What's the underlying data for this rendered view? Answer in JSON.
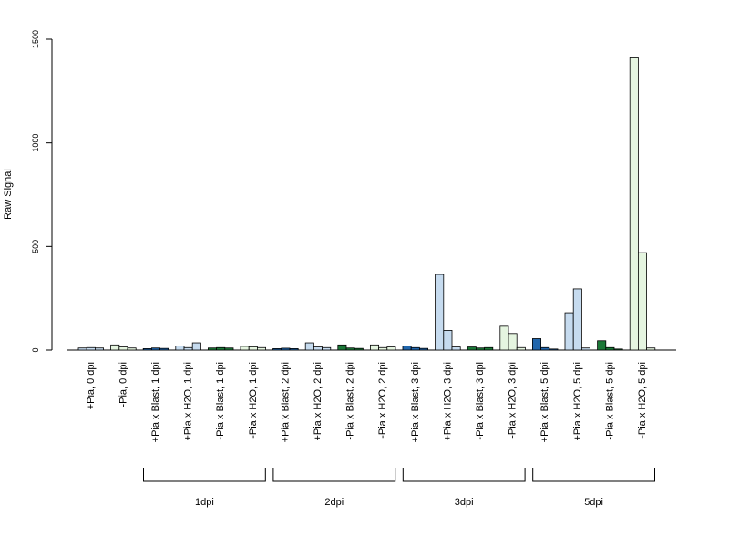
{
  "chart_data": {
    "type": "bar",
    "title": "",
    "xlabel": "",
    "ylabel": "Raw Signal",
    "ylim": [
      0,
      1500
    ],
    "yticks": [
      0,
      500,
      1000,
      1500
    ],
    "grid": false,
    "legend": "none",
    "categories": [
      "+Pia, 0 dpi",
      "-Pia, 0 dpi",
      "+Pia x Blast, 1 dpi",
      "+Pia x H2O, 1 dpi",
      "-Pia x Blast, 1 dpi",
      "-Pia x H2O, 1 dpi",
      "+Pia x Blast, 2 dpi",
      "+Pia x H2O, 2 dpi",
      "-Pia x Blast, 2 dpi",
      "-Pia x H2O, 2 dpi",
      "+Pia x Blast, 3 dpi",
      "+Pia x H2O, 3 dpi",
      "-Pia x Blast, 3 dpi",
      "-Pia x H2O, 3 dpi",
      "+Pia x Blast, 5 dpi",
      "+Pia x H2O, 5 dpi",
      "-Pia x Blast, 5 dpi",
      "-Pia x H2O, 5 dpi"
    ],
    "category_colors": [
      "#c6dbef",
      "#e5f5e0",
      "#2166ac",
      "#c6dbef",
      "#1b7837",
      "#e5f5e0",
      "#2166ac",
      "#c6dbef",
      "#1b7837",
      "#e5f5e0",
      "#2166ac",
      "#c6dbef",
      "#1b7837",
      "#e5f5e0",
      "#2166ac",
      "#c6dbef",
      "#1b7837",
      "#e5f5e0"
    ],
    "values": [
      [
        10,
        12,
        10
      ],
      [
        25,
        15,
        10
      ],
      [
        7,
        10,
        8
      ],
      [
        20,
        12,
        35
      ],
      [
        10,
        12,
        10
      ],
      [
        18,
        16,
        12
      ],
      [
        7,
        9,
        7
      ],
      [
        35,
        15,
        12
      ],
      [
        25,
        10,
        8
      ],
      [
        25,
        12,
        15
      ],
      [
        20,
        12,
        8
      ],
      [
        365,
        95,
        15
      ],
      [
        15,
        10,
        12
      ],
      [
        115,
        80,
        12
      ],
      [
        55,
        12,
        5
      ],
      [
        180,
        295,
        10
      ],
      [
        45,
        12,
        5
      ],
      [
        1410,
        470,
        10
      ]
    ],
    "groups": [
      {
        "label": "1dpi",
        "categories": [
          2,
          5
        ]
      },
      {
        "label": "2dpi",
        "categories": [
          6,
          9
        ]
      },
      {
        "label": "3dpi",
        "categories": [
          10,
          13
        ]
      },
      {
        "label": "5dpi",
        "categories": [
          14,
          17
        ]
      }
    ]
  }
}
